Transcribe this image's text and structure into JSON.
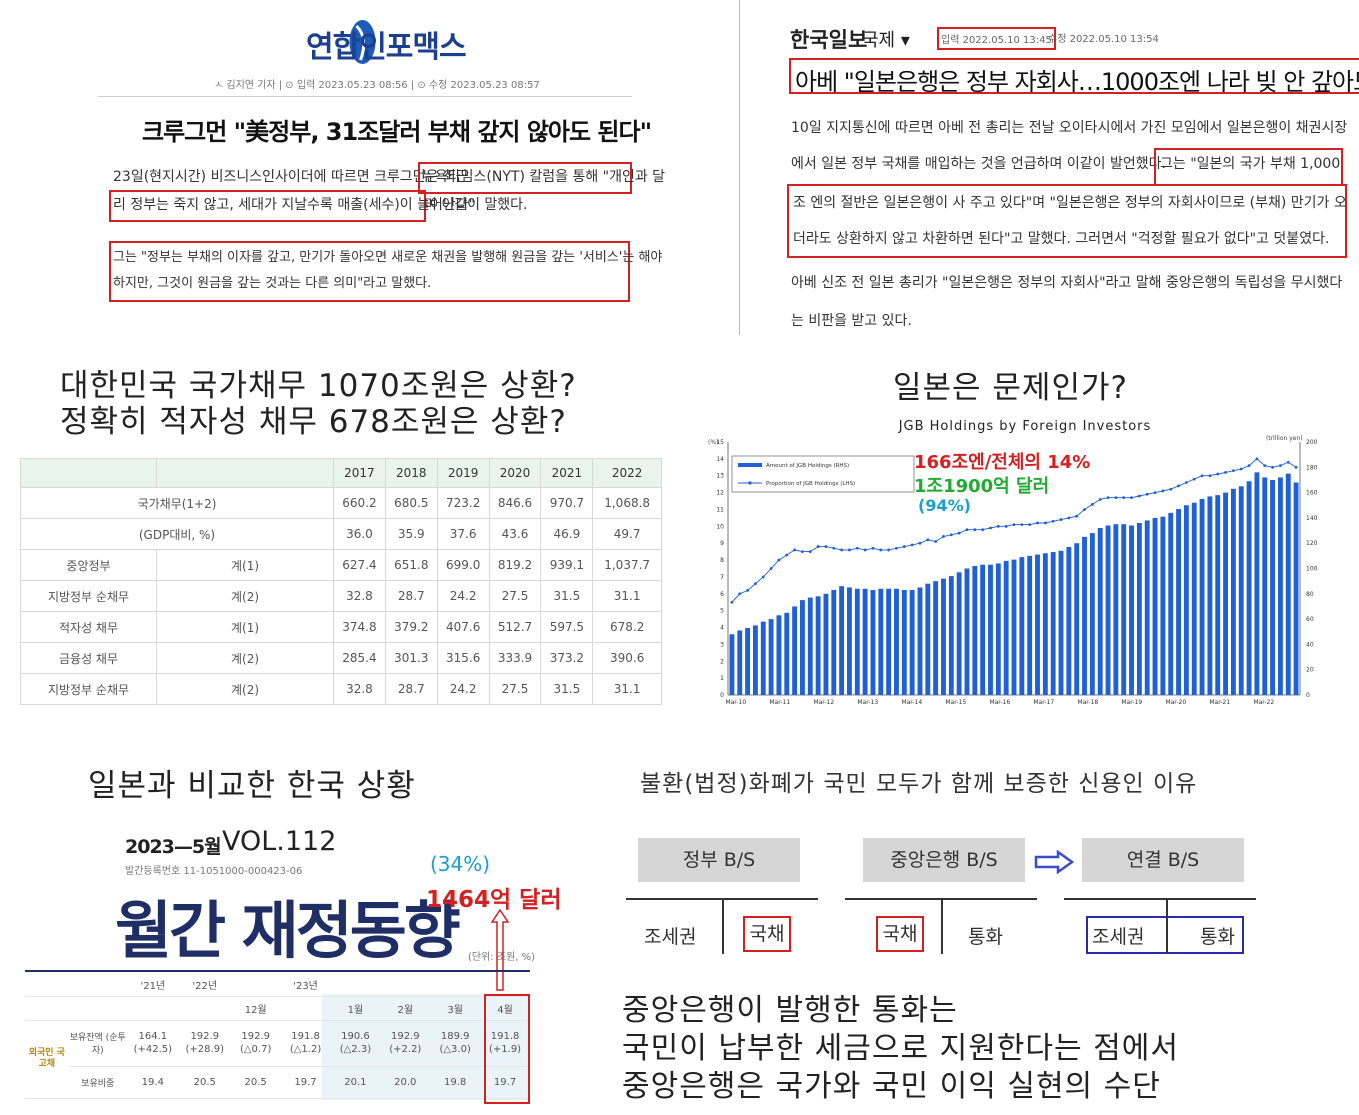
{
  "panel_us": {
    "logo_text": "연합인포맥스",
    "meta": "ㅅ 김지연 기자   | ⊙ 입력 2023.05.23 08:56   | ⊙ 수정 2023.05.23 08:57",
    "title": "크루그먼 \"美정부, 31조달러 부채 갚지 않아도 된다\"",
    "p1_line1_pre": "23일(현지시간) 비즈니스인사이더에 따르면 크루그먼은 최근 ",
    "p1_line1_hl": "뉴욕타임스(NYT) 칼럼을 통해 \"개인과 달",
    "p1_line2_hl": "리 정부는 죽지 않고, 세대가 지날수록 매출(세수)이 늘어난다\"",
    "p1_line2_post": "며 이같이 말했다.",
    "p2_line1": "그는 \"정부는 부채의 이자를 갚고, 만기가 돌아오면 새로운 채권을 발행해 원금을 갚는 '서비스'는 해야",
    "p2_line2": "하지만, 그것이 원금을 갚는 것과는 다른 의미\"라고 말했다."
  },
  "panel_jp": {
    "brand": "한국일보",
    "section": "국제 ▾",
    "date_input": "입력 2022.05.10 13:45",
    "date_edit": "수정 2022.05.10 13:54",
    "title": "아베 \"일본은행은 정부 자회사…1000조엔 나라 빚 안 갚아도 돼\"",
    "lines": [
      "10일 지지통신에 따르면 아베 전 총리는 전날 오이타시에서 가진 모임에서 일본은행이 채권시장",
      "에서 일본 정부 국채를 매입하는 것을 언급하며 이같이 발언했다.",
      "그는 \"일본의 국가 부채 1,000",
      "조 엔의 절반은 일본은행이 사 주고 있다\"며 \"일본은행은 정부의 자회사이므로 (부채) 만기가 오",
      "더라도 상환하지 않고 차환하면 된다\"고 말했다. 그러면서 \"걱정할 필요가 없다\"고 덧붙였다.",
      "아베 신조 전 일본 총리가 \"일본은행은 정부의 자회사\"라고 말해 중앙은행의 독립성을 무시했다",
      "는 비판을 받고 있다."
    ]
  },
  "heading_korea_1": "대한민국 국가채무 1070조원은 상환?",
  "heading_korea_2": "정확히 적자성 채무 678조원은 상환?",
  "heading_japan": "일본은 문제인가?",
  "korea_table": {
    "years": [
      "2017",
      "2018",
      "2019",
      "2020",
      "2021",
      "2022"
    ],
    "rows": [
      {
        "label": "국가채무(1+2)",
        "sub": "",
        "values": [
          "660.2",
          "680.5",
          "723.2",
          "846.6",
          "970.7",
          "1,068.8"
        ]
      },
      {
        "label": "(GDP대비, %)",
        "sub": "",
        "values": [
          "36.0",
          "35.9",
          "37.6",
          "43.6",
          "46.9",
          "49.7"
        ]
      },
      {
        "label": "중앙정부",
        "sub": "계(1)",
        "values": [
          "627.4",
          "651.8",
          "699.0",
          "819.2",
          "939.1",
          "1,037.7"
        ]
      },
      {
        "label": "지방정부 순채무",
        "sub": "계(2)",
        "values": [
          "32.8",
          "28.7",
          "24.2",
          "27.5",
          "31.5",
          "31.1"
        ]
      },
      {
        "label": "적자성 채무",
        "sub": "계(1)",
        "values": [
          "374.8",
          "379.2",
          "407.6",
          "512.7",
          "597.5",
          "678.2"
        ]
      },
      {
        "label": "금융성 채무",
        "sub": "계(2)",
        "values": [
          "285.4",
          "301.3",
          "315.6",
          "333.9",
          "373.2",
          "390.6"
        ]
      },
      {
        "label": "지방정부 순채무",
        "sub": "계(2)",
        "values": [
          "32.8",
          "28.7",
          "24.2",
          "27.5",
          "31.5",
          "31.1"
        ]
      }
    ]
  },
  "chart_data": {
    "type": "bar",
    "title": "JGB Holdings by Foreign Investors",
    "left_unit": "(%)",
    "right_unit": "(trillion yen)",
    "legend": [
      "Amount of JGB Holdings (RHS)",
      "Proportion of JGB Holdings (LHS)"
    ],
    "annotations": [
      "166조엔/전체의 14%",
      "1조1900억 달러",
      "(94%)"
    ],
    "x_tick_labels": [
      "Mar-10",
      "Mar-11",
      "Mar-12",
      "Mar-13",
      "Mar-14",
      "Mar-15",
      "Mar-16",
      "Mar-17",
      "Mar-18",
      "Mar-19",
      "Mar-20",
      "Mar-21",
      "Mar-22"
    ],
    "left_ylim": [
      0,
      15
    ],
    "right_ylim": [
      0,
      200
    ],
    "left_ticks": [
      "0",
      "1",
      "2",
      "3",
      "4",
      "5",
      "6",
      "7",
      "8",
      "9",
      "10",
      "11",
      "12",
      "13",
      "14",
      "15"
    ],
    "right_ticks": [
      "0",
      "20",
      "40",
      "60",
      "80",
      "100",
      "120",
      "140",
      "160",
      "180",
      "200"
    ],
    "bar_values": [
      48,
      51,
      53,
      55,
      58,
      60,
      63,
      65,
      70,
      75,
      77,
      78,
      80,
      83,
      86,
      85,
      84,
      84,
      83,
      84,
      84,
      84,
      83,
      83,
      85,
      88,
      90,
      92,
      94,
      97,
      100,
      102,
      103,
      103,
      104,
      106,
      107,
      109,
      110,
      111,
      112,
      113,
      114,
      117,
      120,
      125,
      128,
      132,
      134,
      135,
      135,
      134,
      136,
      138,
      140,
      141,
      144,
      147,
      150,
      152,
      155,
      157,
      158,
      160,
      163,
      165,
      169,
      176,
      172,
      170,
      172,
      175,
      168
    ],
    "line_values": [
      5.5,
      6.0,
      6.2,
      6.6,
      7.0,
      7.5,
      8.0,
      8.3,
      8.6,
      8.5,
      8.5,
      8.8,
      8.8,
      8.7,
      8.6,
      8.6,
      8.7,
      8.6,
      8.7,
      8.6,
      8.6,
      8.7,
      8.8,
      8.9,
      9.0,
      9.2,
      9.1,
      9.4,
      9.5,
      9.6,
      9.8,
      9.8,
      9.8,
      9.9,
      10.0,
      10.0,
      10.1,
      10.1,
      10.1,
      10.2,
      10.2,
      10.3,
      10.4,
      10.5,
      10.6,
      11.0,
      11.3,
      11.6,
      11.7,
      11.7,
      11.7,
      11.7,
      11.8,
      11.9,
      12.0,
      12.1,
      12.2,
      12.4,
      12.6,
      12.8,
      13.0,
      13.0,
      13.1,
      13.2,
      13.3,
      13.4,
      13.6,
      14.0,
      13.6,
      13.5,
      13.6,
      13.8,
      13.5
    ]
  },
  "heading_compare": "일본과 비교한 한국 상황",
  "monthly": {
    "date": "2023—5월",
    "vol": "VOL.112",
    "reg": "발간등록번호 11-1051000-000423-06",
    "title": "월간 재정동향",
    "unit": "(단위: 조원, %)",
    "pct": "(34%)",
    "usd": "1464억 달러",
    "head_top": [
      "'21년",
      "'22년",
      "'23년"
    ],
    "head_sub": [
      "12월",
      "1월",
      "2월",
      "3월",
      "4월"
    ],
    "row_group": "외국인 국고채",
    "row1_label": "보유잔액 (순투자)",
    "row1_values": [
      "164.1\n(+42.5)",
      "192.9\n(+28.9)",
      "192.9\n(△0.7)",
      "191.8\n(△1.2)",
      "190.6\n(△2.3)",
      "192.9\n(+2.2)",
      "189.9\n(△3.0)",
      "191.8\n(+1.9)"
    ],
    "row2_label": "보유비중",
    "row2_values": [
      "19.4",
      "20.5",
      "20.5",
      "19.7",
      "20.1",
      "20.0",
      "19.8",
      "19.7"
    ]
  },
  "credit": {
    "heading": "불환(법정)화폐가 국민 모두가 함께 보증한 신용인 이유",
    "gov_bs": "정부 B/S",
    "cb_bs": "중앙은행 B/S",
    "cons_bs": "연결 B/S",
    "gov_left": "조세권",
    "gov_right": "국채",
    "cb_left": "국채",
    "cb_right": "통화",
    "cons_left": "조세권",
    "cons_right": "통화",
    "lines": [
      "중앙은행이 발행한 통화는",
      "국민이 납부한 세금으로 지원한다는 점에서",
      "중앙은행은 국가와 국민 이익 실현의 수단"
    ]
  },
  "colors": {
    "highlight_red": "#d42020",
    "bar_blue": "#1f5fd8",
    "accent_cyan": "#1a9ed0",
    "accent_green": "#22aa33",
    "navy": "#1f2f66",
    "cons_box_blue": "#2a2ab0"
  }
}
